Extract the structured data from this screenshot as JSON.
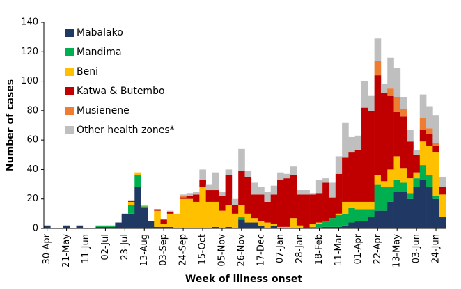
{
  "chart_data": {
    "type": "stacked_bar",
    "x_label": "Week of illness onset",
    "y_label": "Number of cases",
    "categories": [
      "30-Apr",
      null,
      null,
      "21-May",
      null,
      null,
      "11-Jun",
      null,
      null,
      "02-Jul",
      null,
      null,
      "23-Jul",
      null,
      null,
      "13-Aug",
      null,
      null,
      "03-Sep",
      null,
      null,
      "24-Sep",
      null,
      null,
      "15-Oct",
      null,
      null,
      "05-Nov",
      null,
      null,
      "26-Nov",
      null,
      null,
      "17-Dec",
      null,
      null,
      "07-Jan",
      null,
      null,
      "28-Jan",
      null,
      null,
      "18-Feb",
      null,
      null,
      "11-Mar",
      null,
      null,
      "01-Apr",
      null,
      null,
      "22-Apr",
      null,
      null,
      "13-May",
      null,
      null,
      "03-Jun",
      null,
      null,
      "24-Jun",
      null
    ],
    "series": [
      {
        "name": "Mabalako",
        "color": "#1f3864",
        "values": [
          2,
          0,
          0,
          2,
          0,
          2,
          0,
          0,
          1,
          1,
          1,
          4,
          10,
          10,
          28,
          14,
          5,
          1,
          1,
          1,
          0,
          0,
          0,
          0,
          0,
          0,
          1,
          0,
          1,
          0,
          6,
          4,
          4,
          2,
          0,
          2,
          0,
          0,
          0,
          0,
          0,
          0,
          0,
          1,
          1,
          1,
          2,
          4,
          5,
          5,
          8,
          12,
          12,
          18,
          25,
          25,
          20,
          28,
          33,
          28,
          20,
          8
        ]
      },
      {
        "name": "Mandima",
        "color": "#00b050",
        "values": [
          0,
          0,
          0,
          0,
          0,
          0,
          0,
          0,
          1,
          1,
          1,
          0,
          0,
          6,
          8,
          1,
          0,
          0,
          0,
          0,
          0,
          0,
          0,
          0,
          0,
          0,
          0,
          0,
          0,
          0,
          2,
          0,
          0,
          0,
          0,
          0,
          0,
          0,
          0,
          0,
          0,
          1,
          3,
          4,
          6,
          8,
          8,
          10,
          8,
          8,
          5,
          18,
          16,
          10,
          8,
          6,
          4,
          6,
          10,
          8,
          2,
          0
        ]
      },
      {
        "name": "Beni",
        "color": "#ffc000",
        "values": [
          0,
          0,
          0,
          0,
          0,
          0,
          0,
          0,
          0,
          0,
          0,
          0,
          0,
          2,
          2,
          1,
          0,
          11,
          2,
          9,
          10,
          20,
          20,
          18,
          28,
          18,
          17,
          12,
          15,
          10,
          8,
          6,
          3,
          3,
          4,
          1,
          1,
          1,
          7,
          2,
          0,
          2,
          1,
          0,
          0,
          1,
          8,
          4,
          5,
          5,
          5,
          6,
          4,
          12,
          16,
          10,
          10,
          4,
          16,
          20,
          30,
          15
        ]
      },
      {
        "name": "Katwa & Butembo",
        "color": "#c00000",
        "values": [
          0,
          0,
          0,
          0,
          0,
          0,
          0,
          0,
          0,
          0,
          0,
          0,
          0,
          1,
          0,
          0,
          0,
          1,
          3,
          1,
          0,
          1,
          2,
          5,
          5,
          8,
          8,
          10,
          20,
          6,
          23,
          25,
          16,
          18,
          14,
          20,
          32,
          33,
          29,
          21,
          23,
          20,
          20,
          26,
          14,
          27,
          30,
          34,
          35,
          64,
          62,
          68,
          60,
          50,
          30,
          35,
          25,
          12,
          8,
          8,
          4,
          5
        ]
      },
      {
        "name": "Musienene",
        "color": "#ed7d31",
        "values": [
          0,
          0,
          0,
          0,
          0,
          0,
          0,
          0,
          0,
          0,
          0,
          0,
          0,
          0,
          0,
          0,
          0,
          0,
          0,
          0,
          0,
          1,
          0,
          0,
          0,
          0,
          0,
          0,
          0,
          0,
          0,
          0,
          0,
          0,
          0,
          0,
          0,
          0,
          0,
          0,
          0,
          0,
          0,
          0,
          0,
          0,
          0,
          0,
          0,
          0,
          0,
          10,
          0,
          5,
          10,
          5,
          0,
          0,
          8,
          4,
          2,
          0
        ]
      },
      {
        "name": "Other health zones*",
        "color": "#bfbfbf",
        "values": [
          0,
          0,
          0,
          0,
          0,
          0,
          0,
          0,
          0,
          0,
          0,
          0,
          0,
          0,
          0,
          0,
          0,
          0,
          0,
          1,
          0,
          1,
          2,
          2,
          7,
          4,
          12,
          3,
          4,
          4,
          15,
          4,
          8,
          5,
          7,
          6,
          5,
          3,
          6,
          3,
          3,
          1,
          9,
          3,
          10,
          12,
          24,
          10,
          10,
          18,
          10,
          15,
          6,
          21,
          20,
          8,
          8,
          3,
          16,
          15,
          19,
          7
        ]
      }
    ],
    "ylim": [
      0,
      140
    ],
    "yticks": [
      0,
      20,
      40,
      60,
      80,
      100,
      120,
      140
    ],
    "legend": "upper left"
  }
}
